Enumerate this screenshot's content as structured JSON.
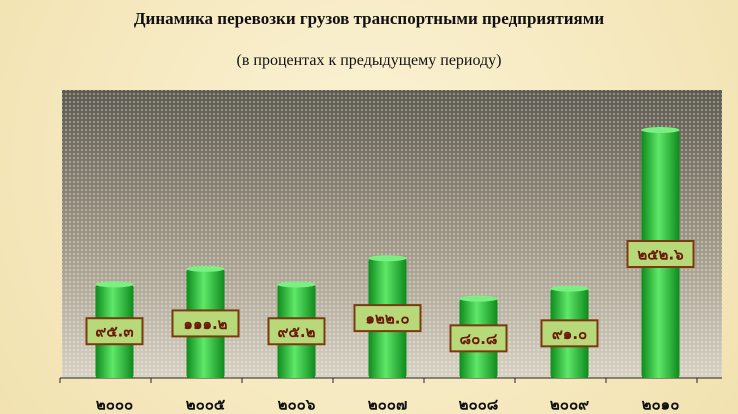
{
  "chart_data": {
    "type": "bar",
    "title": "Динамика перевозки грузов транспортными предприятиями",
    "subtitle": "(в процентах к предыдущему периоду)",
    "categories": [
      "๒๐๐๐",
      "๒๐๐๕",
      "๒๐๐๖",
      "๒๐๐๗",
      "๒๐๐๘",
      "๒๐๐๙",
      "๒๐๑๐"
    ],
    "values": [
      95.3,
      111.2,
      95.2,
      122.0,
      80.8,
      91.0,
      252.6
    ],
    "value_labels": [
      "๙๕.๓",
      "๑๑๑.๒",
      "๙๕.๒",
      "๑๒๒.๐",
      "๘๐.๘",
      "๙๑.๐",
      "๒๕๒.๖"
    ],
    "color": "#2fbf3a"
  }
}
